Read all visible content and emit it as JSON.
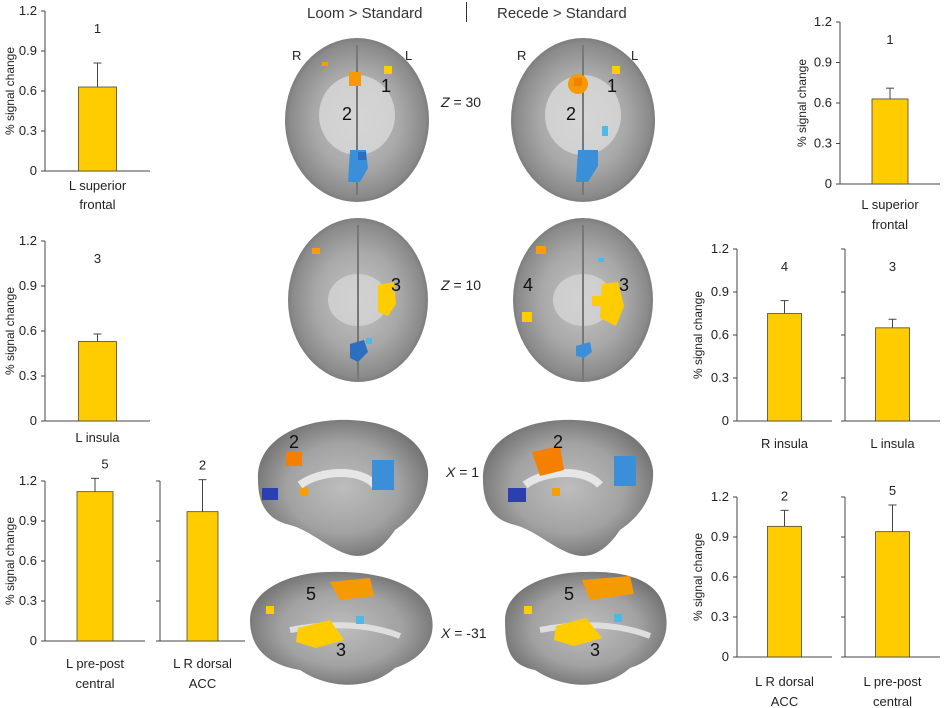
{
  "headers": {
    "left": "Loom > Standard",
    "right": "Recede > Standard"
  },
  "orientation": {
    "r": "R",
    "l": "L"
  },
  "conditions": [
    {
      "axis": "Z",
      "value": "= 30"
    },
    {
      "axis": "Z",
      "value": "= 10"
    },
    {
      "axis": "X",
      "value": "= 1"
    },
    {
      "axis": "X",
      "value": "= -31"
    }
  ],
  "region_numbers": [
    "1",
    "2",
    "3",
    "4",
    "5"
  ],
  "colors": {
    "bar": "#ffcc00",
    "activation_warm": "#f5a000",
    "activation_cool": "#3a8fd8"
  },
  "chart_data": [
    {
      "type": "bar",
      "ylabel": "% signal change",
      "ylim": [
        0,
        1.2
      ],
      "ticks": [
        "0",
        "0.3",
        "0.6",
        "0.9",
        "1.2"
      ],
      "series": [
        {
          "label": "1",
          "category": "L superior frontal",
          "value": 0.63,
          "error": 0.18
        }
      ]
    },
    {
      "type": "bar",
      "ylabel": "% signal change",
      "ylim": [
        0,
        1.2
      ],
      "ticks": [
        "0",
        "0.3",
        "0.6",
        "0.9",
        "1.2"
      ],
      "series": [
        {
          "label": "3",
          "category": "L insula",
          "value": 0.53,
          "error": 0.05
        }
      ]
    },
    {
      "type": "bar",
      "ylabel": "% signal change",
      "ylim": [
        0,
        1.2
      ],
      "ticks": [
        "0",
        "0.3",
        "0.6",
        "0.9",
        "1.2"
      ],
      "series": [
        {
          "label": "5",
          "category": "L pre-post central",
          "value": 1.12,
          "error": 0.1
        },
        {
          "label": "2",
          "category": "L R dorsal ACC",
          "value": 0.97,
          "error": 0.24
        }
      ]
    },
    {
      "type": "bar",
      "ylabel": "% signal change",
      "ylim": [
        0,
        1.2
      ],
      "ticks": [
        "0",
        "0.3",
        "0.6",
        "0.9",
        "1.2"
      ],
      "series": [
        {
          "label": "1",
          "category": "L superior frontal",
          "value": 0.63,
          "error": 0.08
        }
      ]
    },
    {
      "type": "bar",
      "ylabel": "% signal change",
      "ylim": [
        0,
        1.2
      ],
      "ticks": [
        "0",
        "0.3",
        "0.6",
        "0.9",
        "1.2"
      ],
      "series": [
        {
          "label": "4",
          "category": "R insula",
          "value": 0.75,
          "error": 0.09
        },
        {
          "label": "3",
          "category": "L insula",
          "value": 0.65,
          "error": 0.06
        }
      ]
    },
    {
      "type": "bar",
      "ylabel": "% signal change",
      "ylim": [
        0,
        1.2
      ],
      "ticks": [
        "0",
        "0.3",
        "0.6",
        "0.9",
        "1.2"
      ],
      "series": [
        {
          "label": "2",
          "category": "L R dorsal ACC",
          "value": 0.98,
          "error": 0.12
        },
        {
          "label": "5",
          "category": "L pre-post central",
          "value": 0.94,
          "error": 0.2
        }
      ]
    }
  ]
}
